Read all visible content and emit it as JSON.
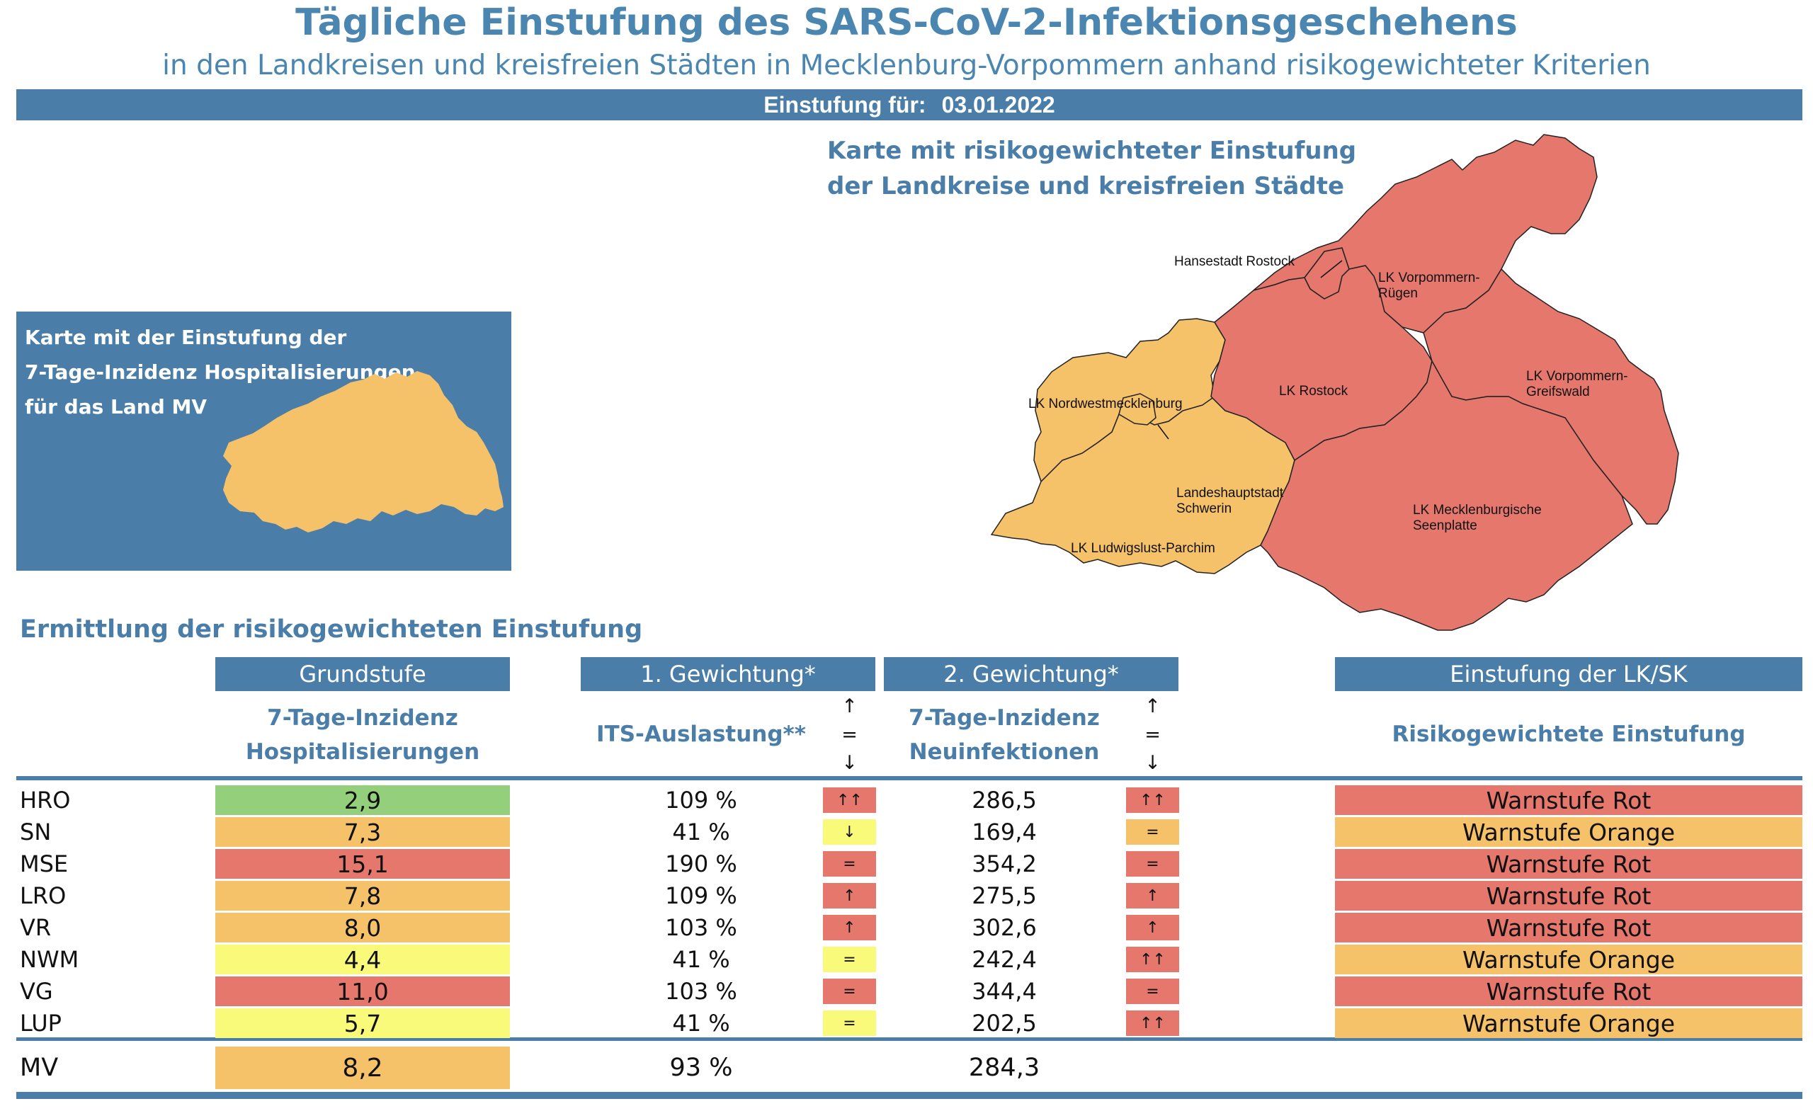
{
  "header": {
    "title": "Tägliche Einstufung des SARS-CoV-2-Infektionsgeschehens",
    "subtitle": "in den Landkreisen und kreisfreien Städten in Mecklenburg-Vorpommern anhand risikogewichteter Kriterien",
    "date_label": "Einstufung für:",
    "date_value": "03.01.2022"
  },
  "mv_map": {
    "title_lines": [
      "Karte mit der Einstufung der",
      "7-Tage-Inzidenz Hospitalisierungen",
      "für das Land MV"
    ],
    "fill_color": "#f5c169"
  },
  "district_map": {
    "title_lines": [
      "Karte mit risikogewichteter Einstufung",
      "der Landkreise und kreisfreien Städte"
    ],
    "labels": {
      "hro": "Hansestadt Rostock",
      "vr": [
        "LK Vorpommern-",
        "Rügen"
      ],
      "nwm": "LK Nordwestmecklenburg",
      "lro": "LK Rostock",
      "vg": [
        "LK Vorpommern-",
        "Greifswald"
      ],
      "sn": [
        "Landeshauptstadt",
        "Schwerin"
      ],
      "mse": [
        "LK Mecklenburgische",
        "Seenplatte"
      ],
      "lup": "LK Ludwigslust-Parchim"
    }
  },
  "section_title": "Ermittlung der risikogewichteten Einstufung",
  "columns": {
    "grundstufe": "Grundstufe",
    "gewichtung1": "1. Gewichtung*",
    "gewichtung2": "2. Gewichtung*",
    "einstufung": "Einstufung der LK/SK",
    "sub_grund": [
      "7-Tage-Inzidenz",
      "Hospitalisierungen"
    ],
    "sub_its": "ITS-Auslastung**",
    "sub_neu": [
      "7-Tage-Inzidenz",
      "Neuinfektionen"
    ],
    "sub_result": "Risikogewichtete Einstufung",
    "arrow_legend": [
      "↑",
      "=",
      "↓"
    ]
  },
  "colors": {
    "green": "#94cf7b",
    "yellow": "#fafa7a",
    "orange": "#f5c169",
    "red": "#e5776d",
    "accent": "#4a7ea8"
  },
  "rows": [
    {
      "abbr": "HRO",
      "grund": "2,9",
      "grund_color": "green",
      "its": "109 %",
      "its_ind": "↑↑",
      "its_ind_color": "red",
      "neu": "286,5",
      "neu_ind": "↑↑",
      "neu_ind_color": "red",
      "result": "Warnstufe Rot",
      "result_color": "red"
    },
    {
      "abbr": "SN",
      "grund": "7,3",
      "grund_color": "orange",
      "its": "41 %",
      "its_ind": "↓",
      "its_ind_color": "yellow",
      "neu": "169,4",
      "neu_ind": "=",
      "neu_ind_color": "orange",
      "result": "Warnstufe Orange",
      "result_color": "orange"
    },
    {
      "abbr": "MSE",
      "grund": "15,1",
      "grund_color": "red",
      "its": "190 %",
      "its_ind": "=",
      "its_ind_color": "red",
      "neu": "354,2",
      "neu_ind": "=",
      "neu_ind_color": "red",
      "result": "Warnstufe Rot",
      "result_color": "red"
    },
    {
      "abbr": "LRO",
      "grund": "7,8",
      "grund_color": "orange",
      "its": "109 %",
      "its_ind": "↑",
      "its_ind_color": "red",
      "neu": "275,5",
      "neu_ind": "↑",
      "neu_ind_color": "red",
      "result": "Warnstufe Rot",
      "result_color": "red"
    },
    {
      "abbr": "VR",
      "grund": "8,0",
      "grund_color": "orange",
      "its": "103 %",
      "its_ind": "↑",
      "its_ind_color": "red",
      "neu": "302,6",
      "neu_ind": "↑",
      "neu_ind_color": "red",
      "result": "Warnstufe Rot",
      "result_color": "red"
    },
    {
      "abbr": "NWM",
      "grund": "4,4",
      "grund_color": "yellow",
      "its": "41 %",
      "its_ind": "=",
      "its_ind_color": "yellow",
      "neu": "242,4",
      "neu_ind": "↑↑",
      "neu_ind_color": "red",
      "result": "Warnstufe Orange",
      "result_color": "orange"
    },
    {
      "abbr": "VG",
      "grund": "11,0",
      "grund_color": "red",
      "its": "103 %",
      "its_ind": "=",
      "its_ind_color": "red",
      "neu": "344,4",
      "neu_ind": "=",
      "neu_ind_color": "red",
      "result": "Warnstufe Rot",
      "result_color": "red"
    },
    {
      "abbr": "LUP",
      "grund": "5,7",
      "grund_color": "yellow",
      "its": "41 %",
      "its_ind": "=",
      "its_ind_color": "yellow",
      "neu": "202,5",
      "neu_ind": "↑↑",
      "neu_ind_color": "red",
      "result": "Warnstufe Orange",
      "result_color": "orange"
    }
  ],
  "mv_row": {
    "abbr": "MV",
    "grund": "8,2",
    "grund_color": "orange",
    "its": "93 %",
    "neu": "284,3"
  }
}
